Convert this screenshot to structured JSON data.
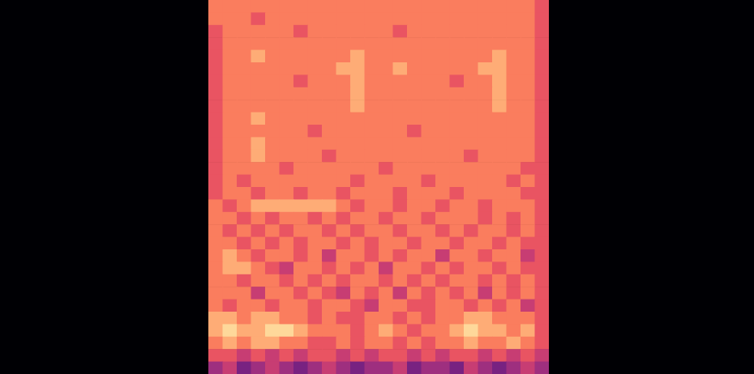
{
  "chart_data": {
    "type": "heatmap",
    "tick_labels": false,
    "cells": [
      [
        6,
        6,
        6,
        6,
        6,
        6,
        6,
        6,
        6,
        6,
        6,
        6,
        6,
        6,
        6,
        6,
        6,
        6,
        6,
        6,
        6,
        6,
        6,
        5
      ],
      [
        6,
        6,
        6,
        5,
        6,
        6,
        6,
        6,
        6,
        6,
        6,
        6,
        6,
        6,
        6,
        6,
        6,
        6,
        6,
        6,
        6,
        6,
        6,
        5
      ],
      [
        5,
        6,
        6,
        6,
        6,
        6,
        5,
        6,
        6,
        6,
        6,
        6,
        6,
        5,
        6,
        6,
        6,
        6,
        6,
        6,
        6,
        6,
        6,
        5
      ],
      [
        5,
        6,
        6,
        6,
        6,
        6,
        6,
        6,
        6,
        6,
        6,
        6,
        6,
        6,
        6,
        6,
        6,
        6,
        6,
        6,
        6,
        6,
        6,
        5
      ],
      [
        5,
        6,
        6,
        7,
        6,
        6,
        6,
        6,
        6,
        6,
        7,
        6,
        6,
        6,
        6,
        6,
        6,
        6,
        6,
        6,
        7,
        6,
        6,
        5
      ],
      [
        5,
        6,
        6,
        6,
        6,
        6,
        6,
        6,
        6,
        7,
        7,
        6,
        6,
        7,
        6,
        6,
        6,
        6,
        6,
        7,
        7,
        6,
        6,
        5
      ],
      [
        5,
        6,
        6,
        6,
        6,
        6,
        5,
        6,
        6,
        6,
        7,
        6,
        6,
        6,
        6,
        6,
        6,
        5,
        6,
        6,
        7,
        6,
        6,
        5
      ],
      [
        5,
        6,
        6,
        6,
        6,
        6,
        6,
        6,
        6,
        6,
        7,
        6,
        6,
        6,
        6,
        6,
        6,
        6,
        6,
        6,
        7,
        6,
        6,
        5
      ],
      [
        5,
        6,
        6,
        6,
        6,
        6,
        6,
        6,
        6,
        6,
        7,
        6,
        6,
        6,
        6,
        6,
        6,
        6,
        6,
        6,
        7,
        6,
        6,
        5
      ],
      [
        5,
        6,
        6,
        7,
        6,
        6,
        6,
        6,
        6,
        6,
        6,
        6,
        6,
        6,
        6,
        6,
        6,
        6,
        6,
        6,
        6,
        6,
        6,
        5
      ],
      [
        5,
        6,
        6,
        6,
        6,
        6,
        6,
        5,
        6,
        6,
        6,
        6,
        6,
        6,
        5,
        6,
        6,
        6,
        6,
        6,
        6,
        6,
        6,
        5
      ],
      [
        5,
        6,
        6,
        7,
        6,
        6,
        6,
        6,
        6,
        6,
        6,
        6,
        6,
        6,
        6,
        6,
        6,
        6,
        6,
        6,
        6,
        6,
        6,
        5
      ],
      [
        5,
        6,
        6,
        7,
        6,
        6,
        6,
        6,
        5,
        6,
        6,
        6,
        6,
        6,
        6,
        6,
        6,
        6,
        5,
        6,
        6,
        6,
        6,
        5
      ],
      [
        5,
        6,
        6,
        6,
        6,
        5,
        6,
        6,
        6,
        6,
        6,
        6,
        5,
        6,
        6,
        6,
        6,
        6,
        6,
        6,
        6,
        6,
        5,
        5
      ],
      [
        5,
        6,
        5,
        6,
        6,
        6,
        6,
        6,
        6,
        6,
        5,
        6,
        6,
        6,
        6,
        5,
        6,
        6,
        6,
        6,
        6,
        5,
        6,
        5
      ],
      [
        5,
        6,
        6,
        5,
        6,
        6,
        5,
        6,
        6,
        5,
        6,
        6,
        6,
        5,
        6,
        6,
        6,
        5,
        6,
        6,
        6,
        6,
        5,
        5
      ],
      [
        6,
        5,
        6,
        7,
        7,
        7,
        7,
        7,
        7,
        6,
        5,
        6,
        6,
        5,
        6,
        6,
        5,
        6,
        6,
        5,
        6,
        6,
        6,
        5
      ],
      [
        6,
        6,
        5,
        6,
        5,
        6,
        6,
        5,
        6,
        5,
        6,
        6,
        5,
        6,
        6,
        5,
        6,
        6,
        6,
        5,
        6,
        5,
        6,
        5
      ],
      [
        6,
        5,
        6,
        5,
        6,
        5,
        6,
        6,
        5,
        6,
        5,
        6,
        6,
        5,
        6,
        6,
        5,
        6,
        5,
        6,
        6,
        5,
        6,
        5
      ],
      [
        6,
        6,
        5,
        6,
        5,
        6,
        5,
        6,
        6,
        5,
        6,
        5,
        6,
        6,
        5,
        6,
        6,
        5,
        6,
        6,
        5,
        6,
        5,
        5
      ],
      [
        6,
        7,
        6,
        5,
        6,
        6,
        5,
        6,
        4,
        6,
        6,
        5,
        6,
        5,
        6,
        6,
        4,
        6,
        6,
        5,
        6,
        6,
        4,
        5
      ],
      [
        6,
        7,
        7,
        6,
        5,
        4,
        6,
        6,
        5,
        6,
        5,
        6,
        4,
        6,
        6,
        5,
        6,
        5,
        6,
        6,
        5,
        6,
        5,
        5
      ],
      [
        6,
        6,
        5,
        6,
        6,
        5,
        6,
        5,
        6,
        5,
        6,
        6,
        5,
        6,
        5,
        6,
        5,
        6,
        6,
        5,
        6,
        5,
        6,
        5
      ],
      [
        6,
        6,
        6,
        4,
        6,
        6,
        5,
        6,
        5,
        4,
        6,
        5,
        6,
        4,
        6,
        5,
        6,
        5,
        6,
        4,
        6,
        5,
        6,
        5
      ],
      [
        6,
        5,
        6,
        6,
        5,
        6,
        6,
        5,
        6,
        6,
        5,
        4,
        6,
        6,
        5,
        5,
        6,
        6,
        5,
        6,
        5,
        6,
        4,
        5
      ],
      [
        7,
        7,
        6,
        7,
        7,
        6,
        6,
        5,
        6,
        5,
        5,
        6,
        6,
        5,
        6,
        5,
        6,
        6,
        7,
        7,
        6,
        6,
        6,
        5
      ],
      [
        7,
        8,
        7,
        7,
        8,
        8,
        7,
        6,
        6,
        6,
        5,
        6,
        7,
        6,
        5,
        6,
        6,
        7,
        8,
        7,
        7,
        6,
        7,
        5
      ],
      [
        6,
        7,
        6,
        7,
        7,
        6,
        6,
        5,
        5,
        6,
        5,
        6,
        6,
        5,
        6,
        5,
        6,
        6,
        7,
        6,
        6,
        7,
        6,
        5
      ],
      [
        5,
        5,
        4,
        5,
        4,
        5,
        4,
        5,
        5,
        4,
        5,
        4,
        5,
        5,
        4,
        5,
        4,
        5,
        5,
        4,
        5,
        4,
        5,
        4
      ],
      [
        3,
        4,
        2,
        3,
        4,
        3,
        2,
        3,
        4,
        3,
        2,
        3,
        3,
        4,
        2,
        3,
        3,
        2,
        4,
        3,
        2,
        3,
        4,
        3
      ]
    ]
  }
}
